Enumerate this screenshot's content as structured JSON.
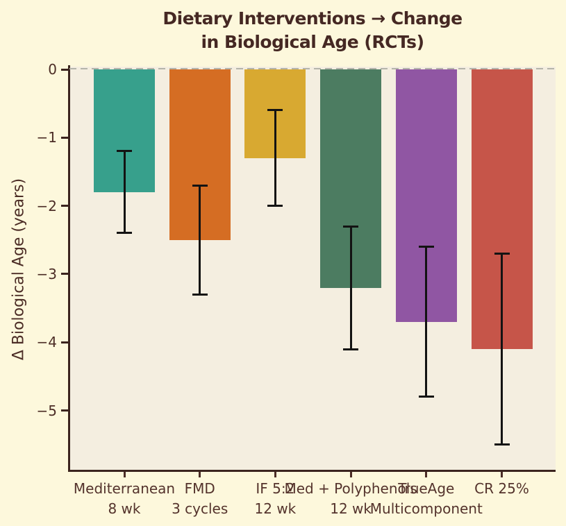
{
  "title": {
    "line1": "Dietary Interventions → Change",
    "line2": "in Biological Age (RCTs)"
  },
  "chart_data": {
    "type": "bar",
    "title": "Dietary Interventions → Change in Biological Age (RCTs)",
    "xlabel": "",
    "ylabel": "Δ Biological Age (years)",
    "ylim": [
      -5.9,
      0.05
    ],
    "yticks": [
      0,
      -1,
      -2,
      -3,
      -4,
      -5
    ],
    "ytick_labels": [
      "0",
      "−1",
      "−2",
      "−3",
      "−4",
      "−5"
    ],
    "categories": [
      [
        "Mediterranean",
        "8 wk"
      ],
      [
        "FMD",
        "3 cycles"
      ],
      [
        "IF 5:2",
        "12 wk"
      ],
      [
        "Med + Polyphenols",
        "12 wk"
      ],
      [
        "TrueAge",
        "Multicomponent"
      ],
      [
        "CR 25%",
        ""
      ]
    ],
    "values": [
      -1.8,
      -2.5,
      -1.3,
      -3.2,
      -3.7,
      -4.1
    ],
    "errors": {
      "upper": [
        -1.2,
        -1.7,
        -0.6,
        -2.3,
        -2.6,
        -2.7
      ],
      "lower": [
        -2.4,
        -3.3,
        -2.0,
        -4.1,
        -4.8,
        -5.5
      ]
    },
    "bar_colors": [
      "#37a08c",
      "#d56d23",
      "#d8a931",
      "#4c7c61",
      "#9056a3",
      "#c65549"
    ],
    "zero_line": {
      "value": 0,
      "style": "dashed",
      "color": "#b4b4aa"
    },
    "grid": false,
    "legend": false
  },
  "colors": {
    "background": "#fdf8dc",
    "plot_background": "#f4eee0",
    "text": "#452823",
    "tick_text": "#4c2d26",
    "spine": "#3b241e",
    "error_bar": "#131313"
  }
}
